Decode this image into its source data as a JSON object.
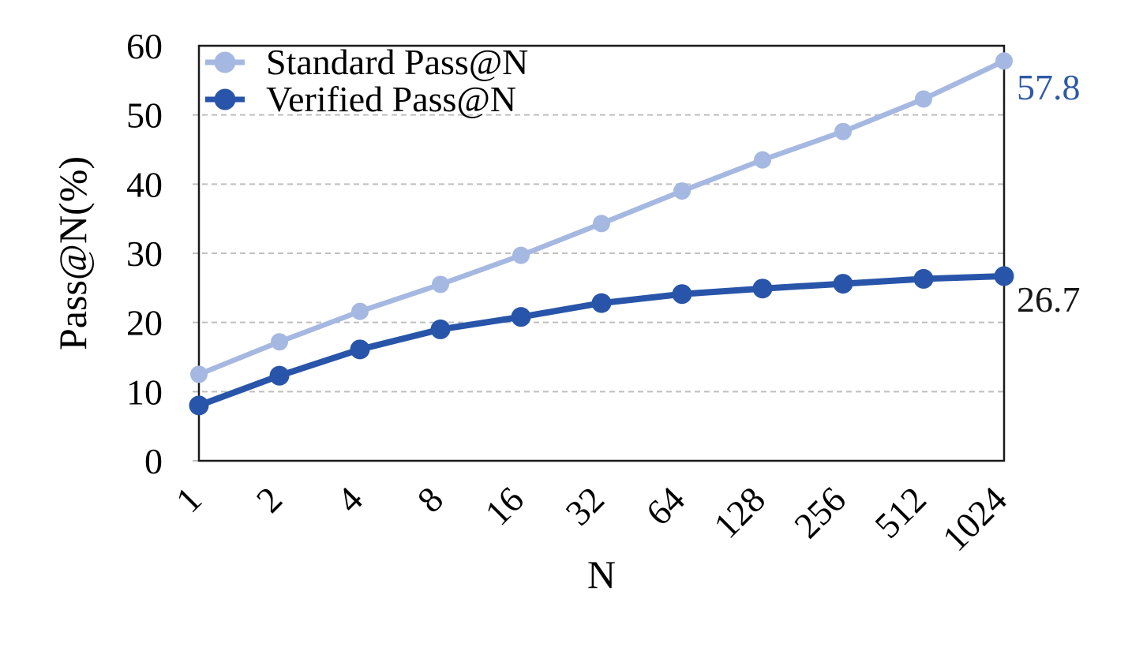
{
  "chart_data": {
    "type": "line",
    "title": "",
    "xlabel": "N",
    "ylabel": "Pass@N(%)",
    "categories": [
      "1",
      "2",
      "4",
      "8",
      "16",
      "32",
      "64",
      "128",
      "256",
      "512",
      "1024"
    ],
    "series": [
      {
        "name": "Standard Pass@N",
        "values": [
          12.5,
          17.2,
          21.6,
          25.5,
          29.7,
          34.3,
          39.0,
          43.5,
          47.6,
          52.3,
          57.8
        ],
        "color": "#a5b8e1",
        "end_label": "57.8",
        "end_label_color": "#2e59a8"
      },
      {
        "name": "Verified Pass@N",
        "values": [
          8.0,
          12.3,
          16.1,
          19.0,
          20.8,
          22.8,
          24.1,
          24.9,
          25.6,
          26.3,
          26.7
        ],
        "color": "#2855a9",
        "end_label": "26.7",
        "end_label_color": "#161616"
      }
    ],
    "ylim": [
      0,
      60
    ],
    "yticks": [
      0,
      10,
      20,
      30,
      40,
      50,
      60
    ],
    "grid": {
      "horizontal": true,
      "style": "dashed",
      "color": "#bfbfbf"
    },
    "legend_position": "top-left-inside",
    "axis_color": "#1a1a1a"
  }
}
